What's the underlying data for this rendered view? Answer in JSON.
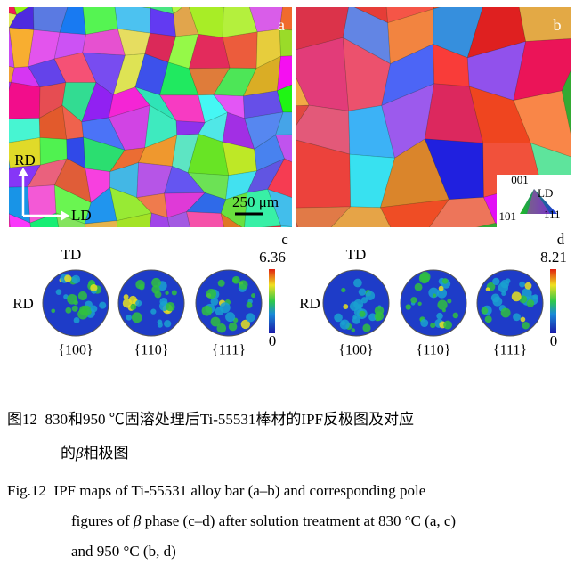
{
  "panels": {
    "a": {
      "label": "a",
      "rd": "RD",
      "ld": "LD",
      "scale": "250 μm"
    },
    "b": {
      "label": "b",
      "legend": {
        "top": "001",
        "ld": "LD",
        "left": "101",
        "right": "111"
      }
    }
  },
  "pole_figures": [
    {
      "label": "c",
      "max": "6.36",
      "min": "0",
      "td": "TD",
      "rd": "RD",
      "planes": [
        "{100}",
        "{110}",
        "{111}"
      ]
    },
    {
      "label": "d",
      "max": "8.21",
      "min": "0",
      "td": "TD",
      "rd": "RD",
      "planes": [
        "{100}",
        "{110}",
        "{111}"
      ]
    }
  ],
  "caption_cn": {
    "line1": "图12  830和950 ℃固溶处理后Ti-55531棒材的IPF反极图及对应",
    "line2": [
      "的",
      "β",
      "相极图"
    ]
  },
  "caption_en": {
    "line1": "Fig.12  IPF maps of Ti-55531 alloy bar (a–b) and corresponding pole",
    "line2": [
      "figures of ",
      "β",
      " phase (c–d) after solution treatment at 830 °C (a, c)"
    ],
    "line3": "and 950 °C (b, d)"
  }
}
